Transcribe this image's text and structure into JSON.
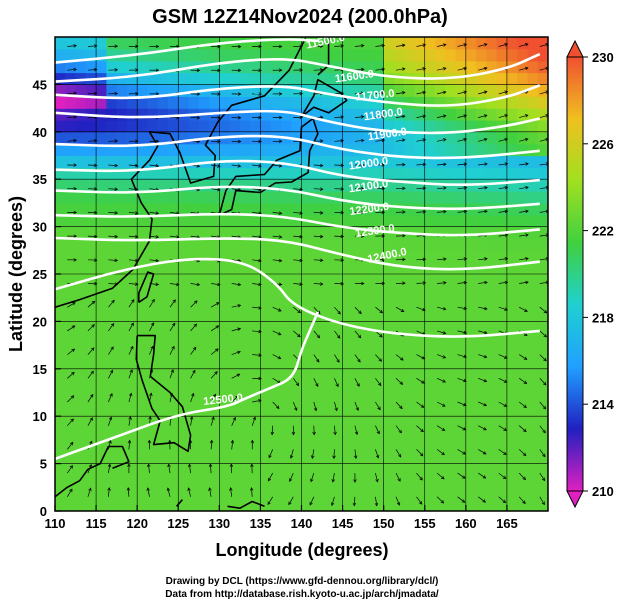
{
  "title": "GSM 12Z14Nov2024 (200.0hPa)",
  "xlabel": "Longitude (degrees)",
  "ylabel": "Latitude  (degrees)",
  "footer": {
    "line1": "Drawing by DCL (https://www.gfd-dennou.org/library/dcl/)",
    "line2": "Data from http://database.rish.kyoto-u.ac.jp/arch/jmadata/"
  },
  "colors": {
    "cold": "#2030c8",
    "warm": "#e86020",
    "mid": "#30c040",
    "contour": "#ffffff",
    "vectors": "#000000",
    "coast": "#000000"
  },
  "chart_data": {
    "type": "heatmap",
    "title": "GSM 12Z14Nov2024 (200.0hPa)",
    "xlabel": "Longitude (degrees)",
    "ylabel": "Latitude  (degrees)",
    "xlim": [
      110,
      170
    ],
    "ylim": [
      0,
      50
    ],
    "xticks": [
      110,
      115,
      120,
      125,
      130,
      135,
      140,
      145,
      150,
      155,
      160,
      165
    ],
    "yticks": [
      0,
      5,
      10,
      15,
      20,
      25,
      30,
      35,
      40,
      45
    ],
    "grid": true,
    "colorbar": {
      "ticks": [
        210,
        214,
        218,
        222,
        226,
        230
      ],
      "range": [
        210,
        230
      ],
      "colors": [
        "#e020c0",
        "#2020c0",
        "#20a0ff",
        "#20d0d0",
        "#40d040",
        "#a0e020",
        "#f0c020",
        "#f05030"
      ]
    },
    "contour_labels": [
      "11500.0",
      "11600.0",
      "11700.0",
      "11800.0",
      "11900.0",
      "12000.0",
      "12100.0",
      "12200.0",
      "12300.0",
      "12400.0",
      "12500.0"
    ],
    "contours": [
      {
        "level": "11500.0",
        "points": [
          [
            110,
            47.3
          ],
          [
            120,
            48.1
          ],
          [
            130,
            49.4
          ],
          [
            138,
            49.8
          ],
          [
            142,
            49.6
          ]
        ]
      },
      {
        "level": "11600.0",
        "points": [
          [
            110,
            45.3
          ],
          [
            120,
            45.8
          ],
          [
            130,
            47.3
          ],
          [
            138,
            47.8
          ],
          [
            143,
            47.0
          ],
          [
            150,
            45.8
          ],
          [
            158,
            45.5
          ],
          [
            165,
            46.6
          ],
          [
            169,
            48.2
          ]
        ]
      },
      {
        "level": "11700.0",
        "points": [
          [
            110,
            43.9
          ],
          [
            120,
            43.4
          ],
          [
            130,
            44.6
          ],
          [
            138,
            44.9
          ],
          [
            143,
            44.0
          ],
          [
            150,
            43.1
          ],
          [
            158,
            42.6
          ],
          [
            165,
            43.6
          ],
          [
            169,
            44.9
          ]
        ]
      },
      {
        "level": "11800.0",
        "points": [
          [
            110,
            42.0
          ],
          [
            120,
            41.4
          ],
          [
            130,
            42.0
          ],
          [
            138,
            42.3
          ],
          [
            143,
            41.1
          ],
          [
            150,
            40.0
          ],
          [
            158,
            39.8
          ],
          [
            165,
            40.6
          ],
          [
            169,
            41.4
          ]
        ]
      },
      {
        "level": "11900.0",
        "points": [
          [
            110,
            38.7
          ],
          [
            120,
            38.4
          ],
          [
            130,
            39.5
          ],
          [
            138,
            39.6
          ],
          [
            145,
            38.1
          ],
          [
            152,
            37.3
          ],
          [
            160,
            37.2
          ],
          [
            169,
            38.0
          ]
        ]
      },
      {
        "level": "12000.0",
        "points": [
          [
            110,
            36.0
          ],
          [
            120,
            35.8
          ],
          [
            130,
            37.0
          ],
          [
            138,
            36.8
          ],
          [
            145,
            35.3
          ],
          [
            152,
            34.7
          ],
          [
            160,
            34.3
          ],
          [
            169,
            34.9
          ]
        ]
      },
      {
        "level": "12100.0",
        "points": [
          [
            110,
            33.8
          ],
          [
            120,
            33.5
          ],
          [
            130,
            34.3
          ],
          [
            138,
            34.0
          ],
          [
            145,
            32.7
          ],
          [
            152,
            32.0
          ],
          [
            160,
            31.8
          ],
          [
            169,
            32.4
          ]
        ]
      },
      {
        "level": "12200.0",
        "points": [
          [
            110,
            31.2
          ],
          [
            120,
            31.0
          ],
          [
            130,
            31.4
          ],
          [
            138,
            31.1
          ],
          [
            145,
            29.9
          ],
          [
            152,
            29.3
          ],
          [
            160,
            29.0
          ],
          [
            169,
            29.7
          ]
        ]
      },
      {
        "level": "12300.0",
        "points": [
          [
            110,
            28.8
          ],
          [
            120,
            28.5
          ],
          [
            130,
            28.8
          ],
          [
            138,
            28.6
          ],
          [
            145,
            27.0
          ],
          [
            152,
            25.7
          ],
          [
            160,
            25.4
          ],
          [
            169,
            26.3
          ]
        ]
      },
      {
        "level": "12400.0",
        "points": [
          [
            110,
            23.4
          ],
          [
            118,
            25.4
          ],
          [
            126,
            26.7
          ],
          [
            133,
            26.4
          ],
          [
            137,
            24.0
          ],
          [
            139,
            21.6
          ],
          [
            145,
            19.6
          ],
          [
            152,
            18.6
          ],
          [
            160,
            18.3
          ],
          [
            169,
            19.0
          ]
        ]
      },
      {
        "level": "12500.0",
        "points": [
          [
            110,
            5.5
          ],
          [
            118,
            8.0
          ],
          [
            125,
            10.2
          ],
          [
            131,
            11.0
          ],
          [
            133,
            11.8
          ],
          [
            136,
            12.9
          ],
          [
            139,
            14.0
          ],
          [
            140,
            17.0
          ],
          [
            141,
            19.0
          ],
          [
            142,
            21.0
          ]
        ]
      }
    ]
  }
}
